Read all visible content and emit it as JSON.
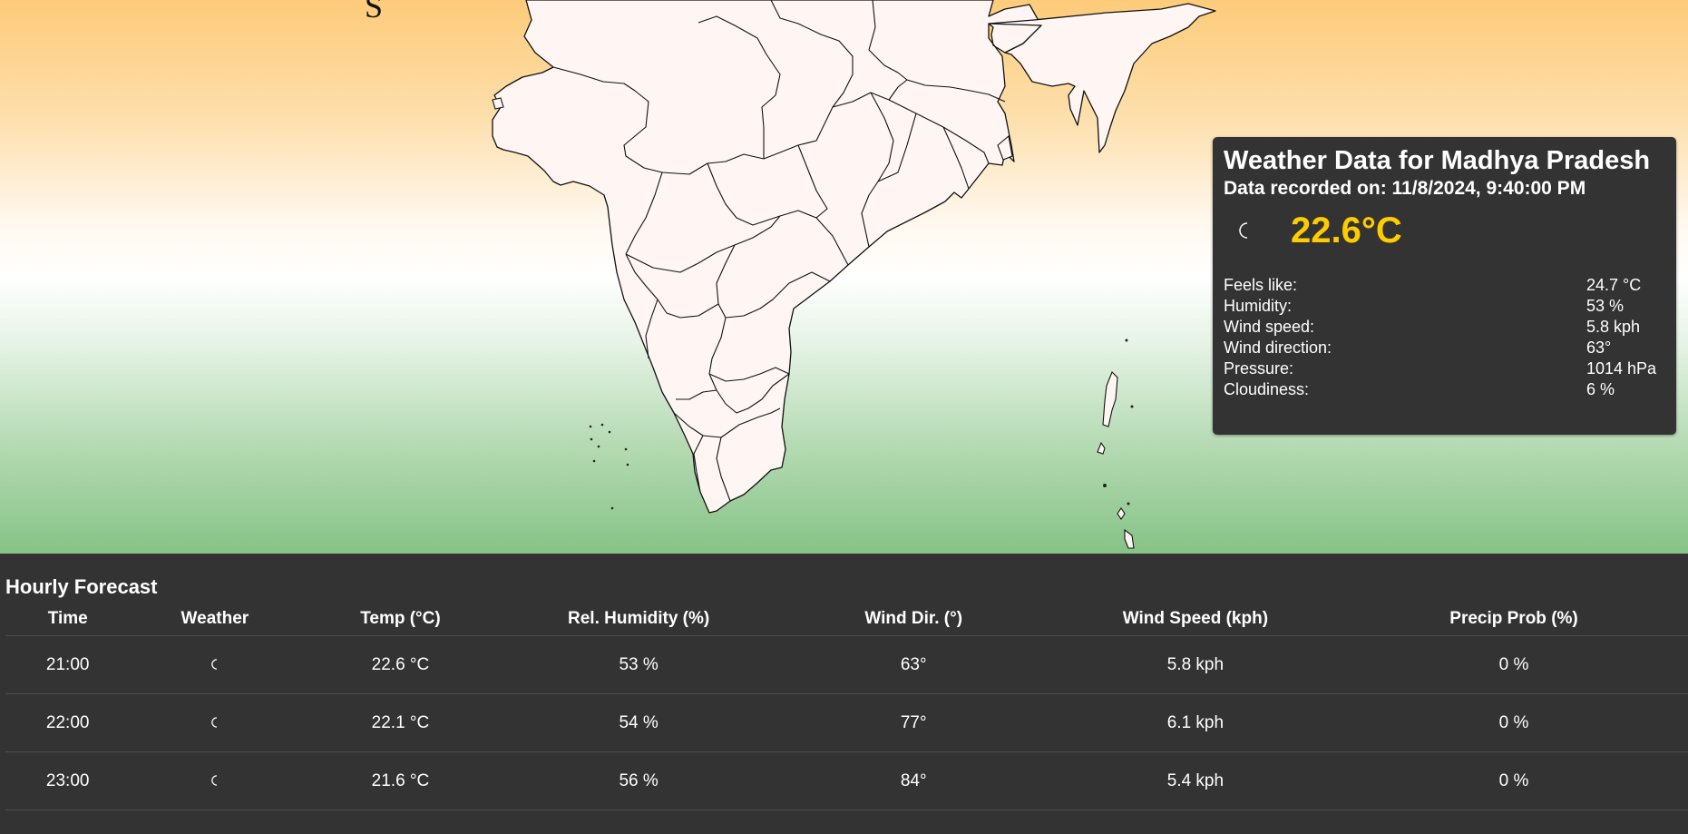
{
  "map": {
    "corner_glyph": "S"
  },
  "card": {
    "title": "Weather Data for Madhya Pradesh",
    "recorded": "Data recorded on: 11/8/2024, 9:40:00 PM",
    "icon": "crescent-moon-icon",
    "temperature": "22.6°C",
    "temperature_color": "#ffcc00",
    "details": [
      {
        "label": "Feels like:",
        "value": "24.7 °C"
      },
      {
        "label": "Humidity:",
        "value": "53 %"
      },
      {
        "label": "Wind speed:",
        "value": "5.8 kph"
      },
      {
        "label": "Wind direction:",
        "value": "63°"
      },
      {
        "label": "Pressure:",
        "value": "1014 hPa"
      },
      {
        "label": "Cloudiness:",
        "value": "6 %"
      }
    ]
  },
  "forecast": {
    "title": "Hourly Forecast",
    "headers": [
      "Time",
      "Weather",
      "Temp (°C)",
      "Rel. Humidity (%)",
      "Wind Dir. (°)",
      "Wind Speed (kph)",
      "Precip Prob (%)"
    ],
    "rows": [
      {
        "time": "21:00",
        "icon": "crescent-moon-icon",
        "temp": "22.6 °C",
        "humidity": "53 %",
        "wind_dir": "63°",
        "wind_speed": "5.8 kph",
        "precip": "0 %"
      },
      {
        "time": "22:00",
        "icon": "crescent-moon-icon",
        "temp": "22.1 °C",
        "humidity": "54 %",
        "wind_dir": "77°",
        "wind_speed": "6.1 kph",
        "precip": "0 %"
      },
      {
        "time": "23:00",
        "icon": "crescent-moon-icon",
        "temp": "21.6 °C",
        "humidity": "56 %",
        "wind_dir": "84°",
        "wind_speed": "5.4 kph",
        "precip": "0 %"
      }
    ]
  },
  "colors": {
    "panel_bg": "#333333",
    "map_top": "#fdcb7a",
    "map_bottom": "#86c386",
    "land_fill": "#fff6f4"
  }
}
